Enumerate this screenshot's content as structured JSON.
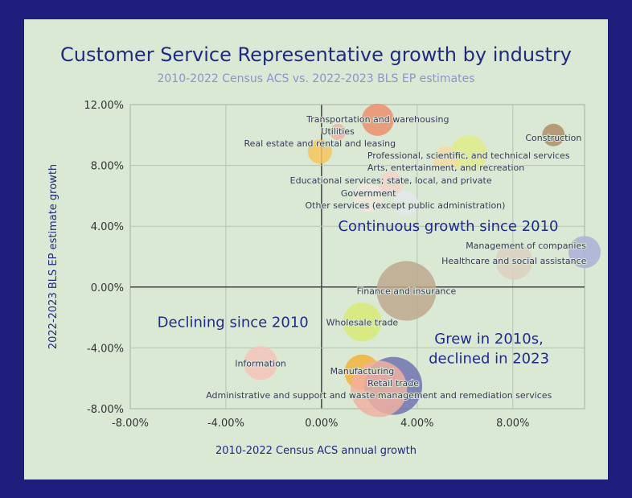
{
  "chart_data": {
    "type": "scatter",
    "subtype": "bubble",
    "title": "Customer Service Representative growth by industry",
    "subtitle": "2010-2022 Census ACS vs. 2022-2023 BLS EP estimates",
    "xlabel": "2010-2022 Census ACS annual growth",
    "ylabel": "2022-2023 BLS EP estimate growth",
    "xlim": [
      -8,
      11
    ],
    "ylim": [
      -8,
      12
    ],
    "x_ticks": [
      -8,
      -4,
      0,
      4,
      8
    ],
    "x_tick_labels": [
      "-8.00%",
      "-4.00%",
      "0.00%",
      "4.00%",
      "8.00%"
    ],
    "y_ticks": [
      -8,
      -4,
      0,
      4,
      8,
      12
    ],
    "y_tick_labels": [
      "-8.00%",
      "-4.00%",
      "0.00%",
      "4.00%",
      "8.00%",
      "12.00%"
    ],
    "grid": true,
    "annotations": [
      {
        "text": "Continuous growth since 2010",
        "x": 5.3,
        "y": 4.0
      },
      {
        "text": "Declining since 2010",
        "x": -3.1,
        "y": -2.3
      },
      {
        "text": "Grew in 2010s,",
        "x": 7.0,
        "y": -3.4
      },
      {
        "text": "declined in 2023",
        "x": 7.0,
        "y": -4.7
      }
    ],
    "points": [
      {
        "label": "Transportation and warehousing",
        "x": 2.35,
        "y": 11.0,
        "size": 20,
        "color": "#ec8f6c"
      },
      {
        "label": "Utilities",
        "x": 0.68,
        "y": 10.2,
        "size": 10,
        "color": "#f2b2a0"
      },
      {
        "label": "Real estate and rental and leasing",
        "x": -0.07,
        "y": 8.9,
        "size": 15,
        "color": "#f4c65c"
      },
      {
        "label": "Construction",
        "x": 9.7,
        "y": 10.0,
        "size": 14,
        "color": "#ae8e66"
      },
      {
        "label": "Professional, scientific, and technical services",
        "x": 6.15,
        "y": 8.75,
        "size": 23,
        "color": "#e1ec88"
      },
      {
        "label": "Arts, entertainment, and recreation",
        "x": 5.2,
        "y": 8.4,
        "size": 16,
        "color": "#f3dca0"
      },
      {
        "label": "Educational services; state, local, and private",
        "x": 2.9,
        "y": 6.8,
        "size": 15,
        "color": "#f2d4c8"
      },
      {
        "label": "Government",
        "x": 1.96,
        "y": 5.9,
        "size": 18,
        "color": "#f2e6dc"
      },
      {
        "label": "Other services (except public administration)",
        "x": 3.5,
        "y": 5.5,
        "size": 16,
        "color": "#e3e6ea"
      },
      {
        "label": "Management of companies",
        "x": 11.0,
        "y": 2.3,
        "size": 20,
        "color": "#aab0d6"
      },
      {
        "label": "Healthcare and social assistance",
        "x": 8.05,
        "y": 1.7,
        "size": 23,
        "color": "#dcd0c0"
      },
      {
        "label": "Finance and insurance",
        "x": 3.55,
        "y": -0.25,
        "size": 37,
        "color": "#bda88c"
      },
      {
        "label": "Wholesale trade",
        "x": 1.7,
        "y": -2.3,
        "size": 24,
        "color": "#d8ea74"
      },
      {
        "label": "Information",
        "x": -2.55,
        "y": -5.0,
        "size": 21,
        "color": "#f4c4b8"
      },
      {
        "label": "Manufacturing",
        "x": 1.7,
        "y": -5.6,
        "size": 22,
        "color": "#f2b236"
      },
      {
        "label": "Retail trade",
        "x": 3.0,
        "y": -6.5,
        "size": 36,
        "color": "#6f74b0"
      },
      {
        "label": "Administrative and support and waste management and remediation services",
        "x": 2.4,
        "y": -6.7,
        "size": 35,
        "color": "#f0b0a0"
      }
    ],
    "colors": {
      "background": "#1e1f7c",
      "plot": "#d9e9d4",
      "title": "#1f2a80",
      "subtitle": "#8a94c8",
      "grid": "#b4c4b0",
      "axis": "#404040",
      "label": "#3a3a5a"
    }
  }
}
